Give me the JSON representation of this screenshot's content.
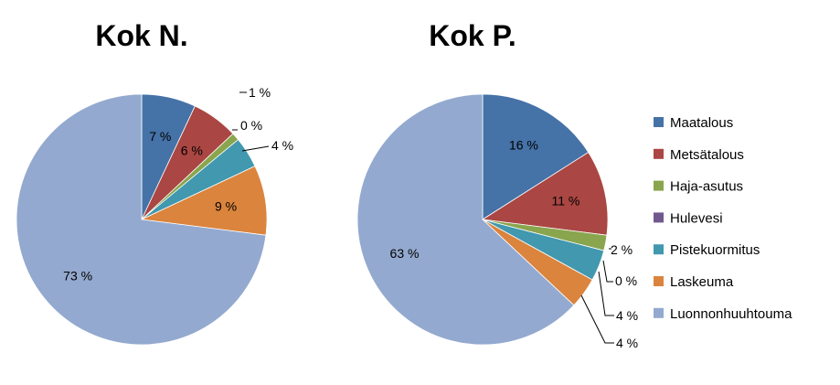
{
  "chart_data": [
    {
      "type": "pie",
      "title": "Kok N.",
      "categories": [
        "Maatalous",
        "Metsätalous",
        "Haja-asutus",
        "Hulevesi",
        "Pistekuormitus",
        "Laskeuma",
        "Luonnonhuuhtouma"
      ],
      "values": [
        7,
        6,
        1,
        0,
        4,
        9,
        73
      ],
      "labels": [
        "7 %",
        "6 %",
        "1 %",
        "0 %",
        "4 %",
        "9 %",
        "73 %"
      ]
    },
    {
      "type": "pie",
      "title": "Kok P.",
      "categories": [
        "Maatalous",
        "Metsätalous",
        "Haja-asutus",
        "Hulevesi",
        "Pistekuormitus",
        "Laskeuma",
        "Luonnonhuuhtouma"
      ],
      "values": [
        16,
        11,
        2,
        0,
        4,
        4,
        63
      ],
      "labels": [
        "16 %",
        "11 %",
        "2 %",
        "0 %",
        "4 %",
        "4 %",
        "63 %"
      ]
    }
  ],
  "legend": {
    "placement": "right",
    "items": [
      "Maatalous",
      "Metsätalous",
      "Haja-asutus",
      "Hulevesi",
      "Pistekuormitus",
      "Laskeuma",
      "Luonnonhuuhtouma"
    ]
  },
  "colors": [
    "#4572A7",
    "#AA4643",
    "#89A54E",
    "#71588F",
    "#4198AF",
    "#DB843D",
    "#93A9CF"
  ]
}
